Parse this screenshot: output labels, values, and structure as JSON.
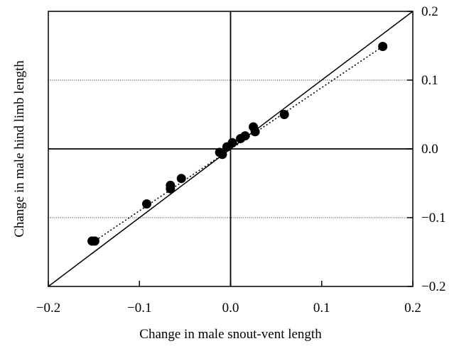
{
  "chart_data": {
    "type": "scatter",
    "title": "",
    "xlabel": "Change in male snout-vent length",
    "ylabel": "Change in male hind limb length",
    "xlim": [
      -0.2,
      0.2
    ],
    "ylim": [
      -0.2,
      0.2
    ],
    "x_ticks": [
      -0.2,
      -0.1,
      0.0,
      0.1,
      0.2
    ],
    "x_tick_labels": [
      "−0.2",
      "−0.1",
      "0.0",
      "0.1",
      "0.2"
    ],
    "y_ticks": [
      -0.2,
      -0.1,
      0.0,
      0.1,
      0.2
    ],
    "y_tick_labels": [
      "−0.2",
      "−0.1",
      "0.0",
      "0.1",
      "0.2"
    ],
    "y_axis_side": "right",
    "grid": false,
    "reference_lines": {
      "zero_axes": true,
      "horizontal_dotted_at": [
        0.1,
        -0.1
      ],
      "identity_line": true
    },
    "fit_line": {
      "style": "dotted",
      "x": [
        -0.148,
        0.167
      ],
      "y": [
        -0.133,
        0.149
      ]
    },
    "series": [
      {
        "points": [
          {
            "x": -0.152,
            "y": -0.134
          },
          {
            "x": -0.149,
            "y": -0.134
          },
          {
            "x": -0.092,
            "y": -0.08
          },
          {
            "x": -0.066,
            "y": -0.058
          },
          {
            "x": -0.066,
            "y": -0.053
          },
          {
            "x": -0.054,
            "y": -0.043
          },
          {
            "x": -0.012,
            "y": -0.005
          },
          {
            "x": -0.009,
            "y": -0.008
          },
          {
            "x": -0.004,
            "y": 0.003
          },
          {
            "x": 0.002,
            "y": 0.009
          },
          {
            "x": 0.011,
            "y": 0.015
          },
          {
            "x": 0.016,
            "y": 0.019
          },
          {
            "x": 0.025,
            "y": 0.032
          },
          {
            "x": 0.027,
            "y": 0.025
          },
          {
            "x": 0.059,
            "y": 0.05
          },
          {
            "x": 0.167,
            "y": 0.149
          }
        ]
      }
    ]
  }
}
